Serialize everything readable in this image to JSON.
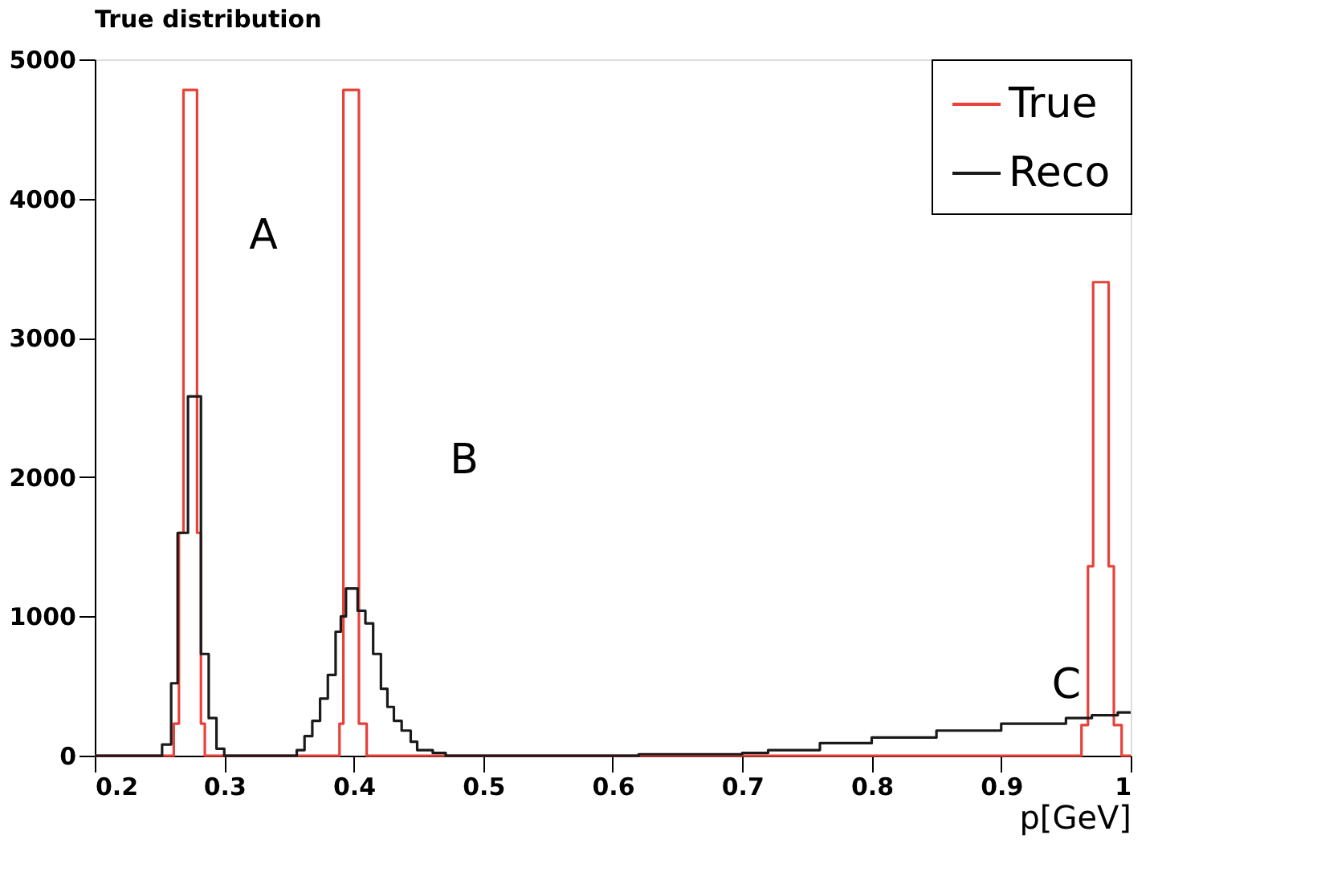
{
  "chart_data": {
    "type": "step",
    "title": "True distribution",
    "xlabel": "p[GeV]",
    "xlim": [
      0.2,
      1.0
    ],
    "xticks": [
      0.2,
      0.3,
      0.4,
      0.5,
      0.6,
      0.7,
      0.8,
      0.9,
      1
    ],
    "ylim": [
      0,
      5000
    ],
    "yticks": [
      0,
      1000,
      2000,
      3000,
      4000,
      5000
    ],
    "legend": "top right",
    "line_style": "solid",
    "series": [
      {
        "name": "True",
        "color": "#e8413a",
        "x": [
          0.2,
          0.261,
          0.265,
          0.2685,
          0.279,
          0.282,
          0.285,
          0.389,
          0.392,
          0.404,
          0.41,
          0.962,
          0.967,
          0.971,
          0.983,
          0.987,
          0.993,
          1.0
        ],
        "values": [
          0,
          230,
          1600,
          4780,
          1600,
          230,
          0,
          230,
          4780,
          230,
          0,
          220,
          1360,
          3400,
          1360,
          220,
          0,
          0
        ]
      },
      {
        "name": "Reco",
        "color": "#1a1a1a",
        "x": [
          0.2,
          0.252,
          0.259,
          0.264,
          0.272,
          0.282,
          0.288,
          0.294,
          0.3,
          0.356,
          0.362,
          0.368,
          0.374,
          0.38,
          0.386,
          0.39,
          0.394,
          0.403,
          0.409,
          0.415,
          0.421,
          0.426,
          0.431,
          0.437,
          0.444,
          0.449,
          0.461,
          0.471,
          0.62,
          0.66,
          0.7,
          0.72,
          0.76,
          0.8,
          0.85,
          0.9,
          0.95,
          0.97,
          0.99,
          1.0
        ],
        "values": [
          0,
          80,
          520,
          1600,
          2580,
          730,
          270,
          50,
          0,
          40,
          140,
          250,
          410,
          580,
          890,
          1000,
          1200,
          1040,
          950,
          730,
          480,
          350,
          250,
          180,
          100,
          40,
          20,
          0,
          10,
          10,
          20,
          40,
          90,
          130,
          180,
          230,
          270,
          290,
          310,
          310
        ]
      }
    ],
    "annotations": [
      "A",
      "B",
      "C"
    ]
  }
}
